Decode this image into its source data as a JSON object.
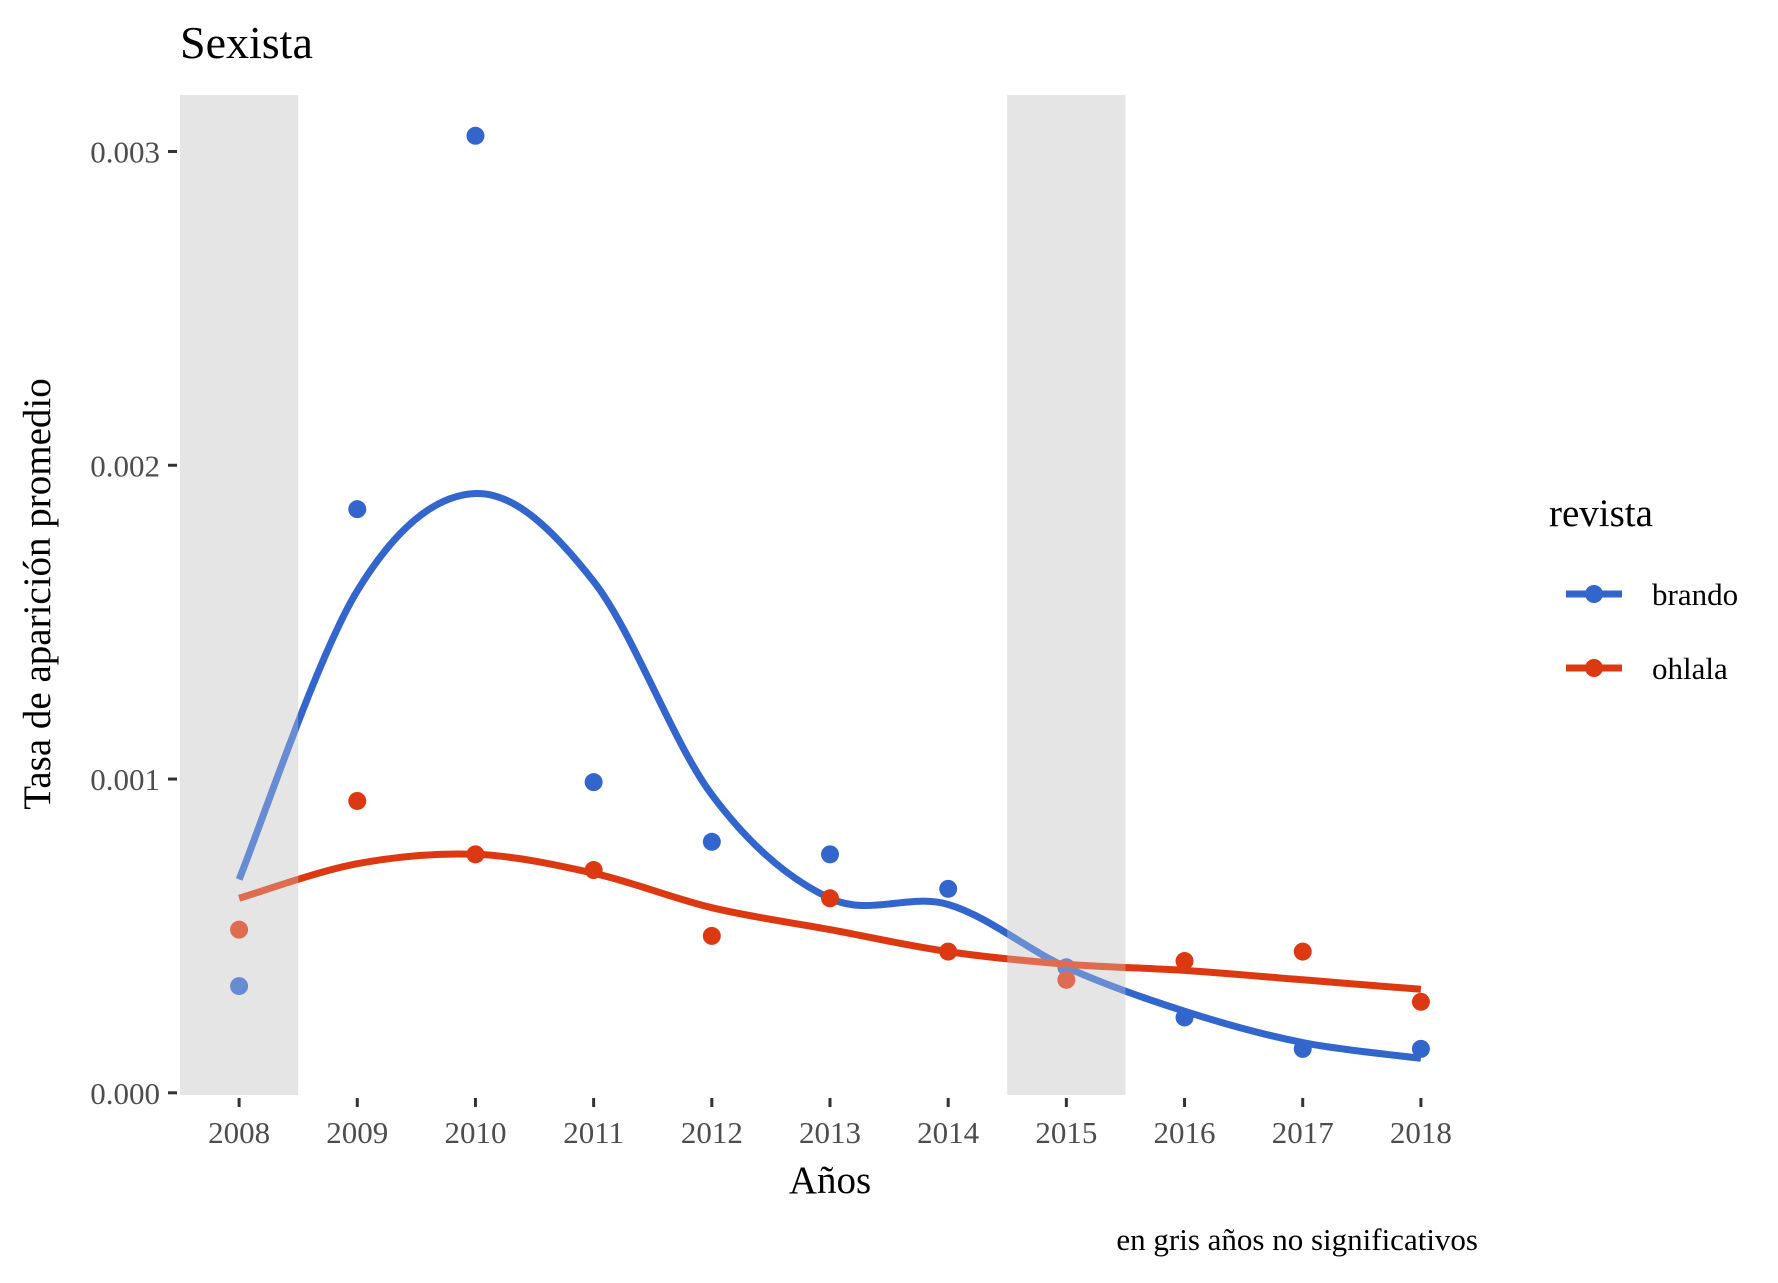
{
  "chart_data": {
    "type": "scatter",
    "title": "Sexista",
    "xlabel": "Años",
    "ylabel": "Tasa de aparición promedio",
    "caption": "en gris años no significativos",
    "x": [
      2008,
      2009,
      2010,
      2011,
      2012,
      2013,
      2014,
      2015,
      2016,
      2017,
      2018
    ],
    "xlim": [
      2007.5,
      2018.5
    ],
    "ylim": [
      -7e-06,
      0.00318
    ],
    "y_ticks": [
      0,
      0.001,
      0.002,
      0.003
    ],
    "y_tick_labels": [
      "0.000",
      "0.001",
      "0.002",
      "0.003"
    ],
    "x_tick_labels": [
      "2008",
      "2009",
      "2010",
      "2011",
      "2012",
      "2013",
      "2014",
      "2015",
      "2016",
      "2017",
      "2018"
    ],
    "grid": false,
    "non_significant_years": [
      2008,
      2015
    ],
    "legend": {
      "title": "revista",
      "position": "right"
    },
    "series": [
      {
        "name": "brando",
        "color": "#3366cc",
        "points": [
          0.00034,
          0.00186,
          0.00305,
          0.00099,
          0.0008,
          0.00076,
          0.00065,
          0.0004,
          0.00024,
          0.00014,
          0.00014
        ],
        "smooth": [
          0.00068,
          0.0016,
          0.00191,
          0.00163,
          0.00095,
          0.00062,
          0.0006,
          0.0004,
          0.00026,
          0.00016,
          0.00011
        ]
      },
      {
        "name": "ohlala",
        "color": "#dc3912",
        "points": [
          0.00052,
          0.00093,
          0.00076,
          0.00071,
          0.0005,
          0.00062,
          0.00045,
          0.00036,
          0.00042,
          0.00045,
          0.00029
        ],
        "smooth": [
          0.00062,
          0.00073,
          0.00076,
          0.0007,
          0.00059,
          0.00052,
          0.00045,
          0.00041,
          0.00039,
          0.00036,
          0.00033
        ]
      }
    ]
  }
}
